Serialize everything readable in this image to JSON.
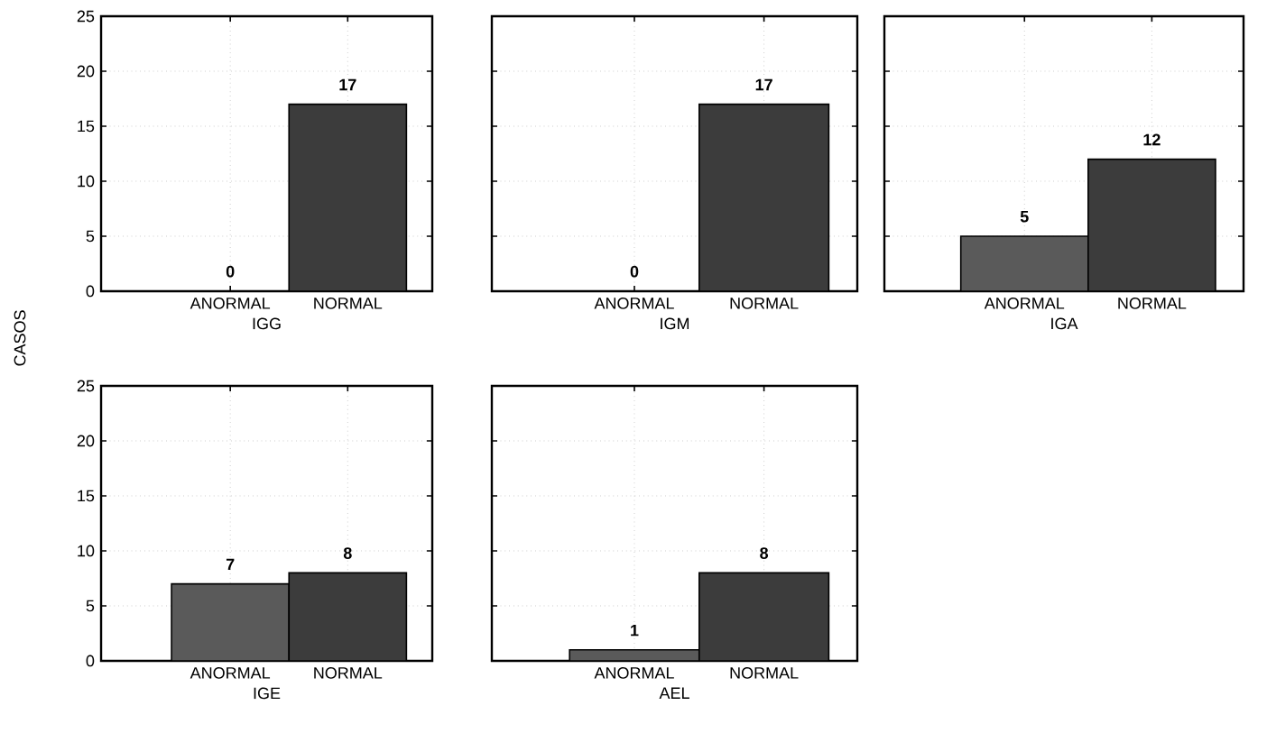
{
  "chart_data": [
    {
      "type": "bar",
      "xlabel": "IGG",
      "ylabel": "CASOS",
      "categories": [
        "ANORMAL",
        "NORMAL"
      ],
      "values": [
        0,
        17
      ],
      "colors": [
        "#5a5a5a",
        "#3c3c3c"
      ],
      "ylim": [
        0,
        25
      ],
      "yticks": [
        0,
        5,
        10,
        15,
        20,
        25
      ],
      "grid": true,
      "data_labels": true
    },
    {
      "type": "bar",
      "xlabel": "IGM",
      "categories": [
        "ANORMAL",
        "NORMAL"
      ],
      "values": [
        0,
        17
      ],
      "colors": [
        "#5a5a5a",
        "#3c3c3c"
      ],
      "ylim": [
        0,
        25
      ],
      "yticks": [
        0,
        5,
        10,
        15,
        20,
        25
      ],
      "grid": true,
      "data_labels": true,
      "tick_labels": "x"
    },
    {
      "type": "bar",
      "xlabel": "IGA",
      "categories": [
        "ANORMAL",
        "NORMAL"
      ],
      "values": [
        5,
        12
      ],
      "colors": [
        "#5a5a5a",
        "#3c3c3c"
      ],
      "ylim": [
        0,
        25
      ],
      "yticks": [
        0,
        5,
        10,
        15,
        20,
        25
      ],
      "grid": true,
      "data_labels": true,
      "tick_labels": "x"
    },
    {
      "type": "bar",
      "xlabel": "IGE",
      "categories": [
        "ANORMAL",
        "NORMAL"
      ],
      "values": [
        7,
        8
      ],
      "colors": [
        "#5a5a5a",
        "#3c3c3c"
      ],
      "ylim": [
        0,
        25
      ],
      "yticks": [
        0,
        5,
        10,
        15,
        20,
        25
      ],
      "grid": true,
      "data_labels": true
    },
    {
      "type": "bar",
      "xlabel": "AEL",
      "categories": [
        "ANORMAL",
        "NORMAL"
      ],
      "values": [
        1,
        8
      ],
      "colors": [
        "#5a5a5a",
        "#3c3c3c"
      ],
      "ylim": [
        0,
        25
      ],
      "yticks": [
        0,
        5,
        10,
        15,
        20,
        25
      ],
      "grid": true,
      "data_labels": true,
      "tick_labels": "x"
    }
  ]
}
